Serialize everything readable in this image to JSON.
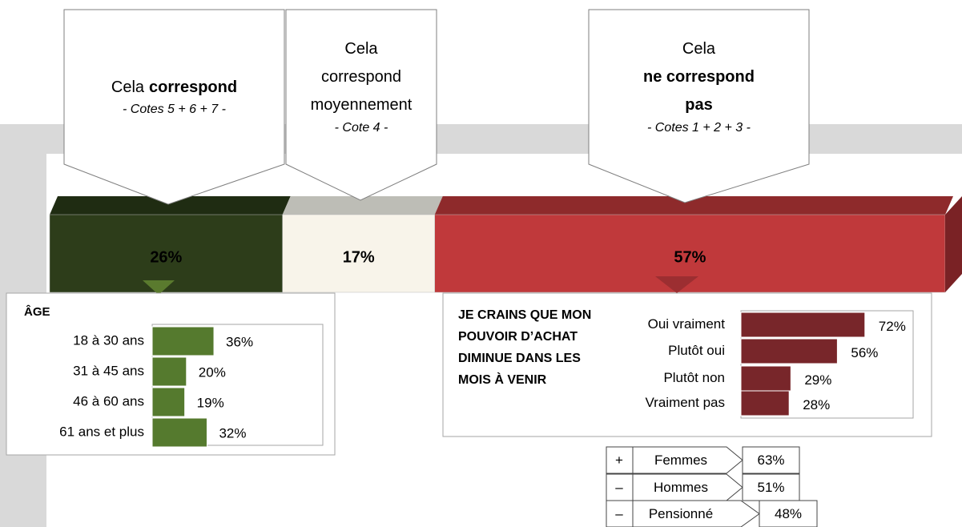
{
  "callouts": [
    {
      "lines": [
        [
          {
            "text": "Cela"
          },
          {
            "text": "correspond",
            "bold": true
          }
        ]
      ],
      "note": "- Cotes 5 + 6 + 7 -"
    },
    {
      "lines": [
        [
          {
            "text": "Cela"
          }
        ],
        [
          {
            "text": "correspond"
          }
        ],
        [
          {
            "text": "moyennement"
          }
        ]
      ],
      "note": "- Cote 4 -"
    },
    {
      "lines": [
        [
          {
            "text": "Cela"
          }
        ],
        [
          {
            "text": "ne correspond",
            "bold": true
          }
        ],
        [
          {
            "text": "pas",
            "bold": true
          }
        ]
      ],
      "note": "- Cotes 1 + 2 + 3 -"
    }
  ],
  "main_bar": {
    "values": [
      26,
      17,
      57
    ],
    "value_labels": [
      "26%",
      "17%",
      "57%"
    ],
    "colors": [
      "#2d3d1a",
      "#f8f4ea",
      "#c0393b"
    ],
    "top_colors": [
      "#1f2c12",
      "#bdbdb6",
      "#8e2a2b"
    ]
  },
  "age": {
    "title": "ÂGE",
    "categories": [
      "18 à 30 ans",
      "31 à 45 ans",
      "46 à 60 ans",
      "61 ans et plus"
    ],
    "values": [
      36,
      20,
      19,
      32
    ],
    "value_labels": [
      "36%",
      "20%",
      "19%",
      "32%"
    ],
    "color": "#557a2e"
  },
  "worry": {
    "title_lines": [
      "JE CRAINS QUE MON",
      "POUVOIR D’ACHAT",
      "DIMINUE DANS LES",
      "MOIS À VENIR"
    ],
    "categories": [
      "Oui vraiment",
      "Plutôt oui",
      "Plutôt non",
      "Vraiment pas"
    ],
    "values": [
      72,
      56,
      29,
      28
    ],
    "value_labels": [
      "72%",
      "56%",
      "29%",
      "28%"
    ],
    "color": "#78262a"
  },
  "groups": {
    "rows": [
      {
        "sign": "+",
        "label": "Femmes",
        "value": "63%"
      },
      {
        "sign": "–",
        "label": "Hommes",
        "value": "51%"
      },
      {
        "sign": "–",
        "label": "Pensionné",
        "value": "48%"
      }
    ]
  }
}
